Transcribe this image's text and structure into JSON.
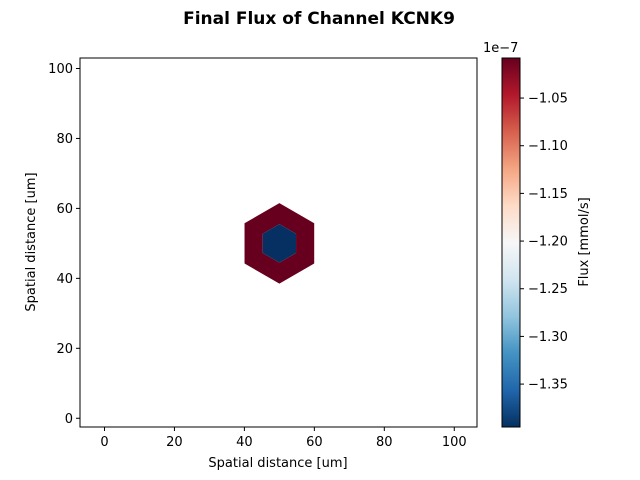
{
  "chart_data": {
    "type": "heatmap",
    "title": "Final Flux of Channel KCNK9",
    "xlabel": "Spatial distance [um]",
    "ylabel": "Spatial distance [um]",
    "xlim": [
      -7,
      106.5
    ],
    "ylim": [
      -2.5,
      103
    ],
    "xticks": [
      0,
      20,
      40,
      60,
      80,
      100
    ],
    "yticks": [
      0,
      20,
      40,
      60,
      80,
      100
    ],
    "grid": false,
    "colormap": "RdBu_r",
    "colorbar": {
      "label": "Flux [mmol/s]",
      "offset_text": "1e−7",
      "range": [
        -1.395,
        -1.008
      ],
      "ticks": [
        -1.05,
        -1.1,
        -1.15,
        -1.2,
        -1.25,
        -1.3,
        -1.35
      ],
      "tick_labels": [
        "−1.05",
        "−1.10",
        "−1.15",
        "−1.20",
        "−1.25",
        "−1.30",
        "−1.35"
      ]
    },
    "cells": [
      {
        "shape": "hexagon",
        "center": [
          50,
          50
        ],
        "outer_radius": 11.5,
        "inner_radius": 5.5,
        "value": -1.01,
        "color": "#67001f",
        "region": "outer-ring"
      },
      {
        "shape": "hexagon",
        "center": [
          50,
          50
        ],
        "radius": 5.5,
        "value": -1.39,
        "color": "#053061",
        "region": "center"
      }
    ]
  }
}
